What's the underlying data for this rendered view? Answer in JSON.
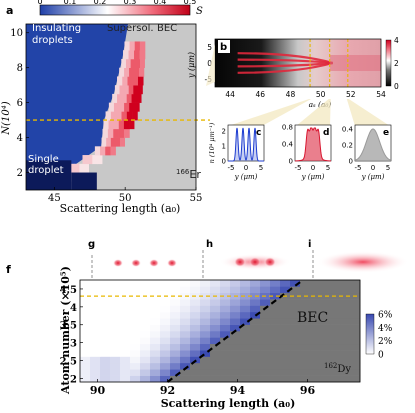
{
  "chart_data": [
    {
      "panel": "a",
      "type": "heatmap",
      "xlabel": "Scattering length (a₀)",
      "ylabel": "N(10⁴)",
      "xticks": [
        45,
        50,
        55
      ],
      "yticks": [
        2,
        4,
        6,
        8,
        10
      ],
      "xlim": [
        43,
        55
      ],
      "ylim": [
        1,
        10.5
      ],
      "colorbar": {
        "label": "S",
        "ticks": [
          "0",
          "0.1",
          "0.2",
          "0.3",
          "0.4",
          "0.5"
        ],
        "range": [
          0,
          0.5
        ]
      },
      "region_labels": [
        "Insulating droplets",
        "Supersol.",
        "BEC",
        "Single droplet"
      ],
      "species": "166Er",
      "species_mass": "166",
      "species_symbol": "Er",
      "dashed_line_N": 5,
      "boundary_left": [
        [
          1.5,
          44.8
        ],
        [
          3.5,
          48.3
        ],
        [
          5,
          48.5
        ],
        [
          6.5,
          49.2
        ],
        [
          8.5,
          49.8
        ],
        [
          10.5,
          50.2
        ]
      ],
      "boundary_right": [
        [
          1.5,
          46.0
        ],
        [
          3.5,
          49.8
        ],
        [
          5,
          50.8
        ],
        [
          6.5,
          51.2
        ],
        [
          8.5,
          51.4
        ],
        [
          10.5,
          51.4
        ]
      ]
    },
    {
      "panel": "b",
      "type": "heatmap",
      "xlabel": "aₛ (a₀)",
      "ylabel": "y (μm)",
      "xticks": [
        44,
        46,
        48,
        50,
        52,
        54
      ],
      "yticks": [
        5,
        0,
        -5
      ],
      "xlim": [
        43,
        54
      ],
      "colorbar": {
        "ticks": [
          "0",
          "2",
          "4"
        ]
      }
    },
    {
      "panel": "c",
      "type": "line",
      "xlabel": "y (μm)",
      "ylabel": "n (10⁴ μm⁻¹)",
      "xticks": [
        -5,
        0,
        5
      ],
      "yticks": [
        0,
        1,
        2
      ],
      "ylim": [
        0,
        2.4
      ],
      "peaks_x": [
        -3.0,
        -1.0,
        1.0,
        3.0
      ],
      "peak_height": 2.2,
      "color": "#1c3bd0"
    },
    {
      "panel": "d",
      "type": "line",
      "xlabel": "y (μm)",
      "yticks": [
        0,
        0.4,
        0.8
      ],
      "xticks": [
        -5,
        0,
        5
      ],
      "ylim": [
        0,
        0.85
      ],
      "peaks_x": [
        -1.8,
        -0.6,
        0.6,
        1.8
      ],
      "peak_height": 0.78,
      "color": "#d8152f"
    },
    {
      "panel": "e",
      "type": "area",
      "xlabel": "y (μm)",
      "yticks": [
        0,
        0.2,
        0.4
      ],
      "xticks": [
        -5,
        0,
        5
      ],
      "ylim": [
        0,
        0.45
      ],
      "peak_height": 0.4,
      "color": "#9a9a9a"
    },
    {
      "panel": "f",
      "type": "heatmap",
      "xlabel": "Scattering length (a₀)",
      "ylabel": "Atom number (×10⁵)",
      "xticks": [
        90,
        92,
        94,
        96
      ],
      "yticks": [
        2,
        2.5,
        3,
        3.5,
        4,
        4.5
      ],
      "xlim": [
        89.5,
        97.5
      ],
      "ylim": [
        1.9,
        4.75
      ],
      "colorbar": {
        "ticks": [
          "0",
          "2%",
          "4%",
          "6%"
        ],
        "range": [
          0,
          6
        ]
      },
      "region_labels": [
        "BEC"
      ],
      "species": "162Dy",
      "species_mass": "162",
      "species_symbol": "Dy",
      "dashed_line_N": 4.3,
      "boundary_line": [
        [
          92.0,
          1.9
        ],
        [
          95.8,
          4.7
        ]
      ],
      "inset_labels": [
        "g",
        "h",
        "i"
      ]
    }
  ],
  "panel_labels": [
    "a",
    "b",
    "c",
    "d",
    "e",
    "f",
    "g",
    "h",
    "i"
  ]
}
